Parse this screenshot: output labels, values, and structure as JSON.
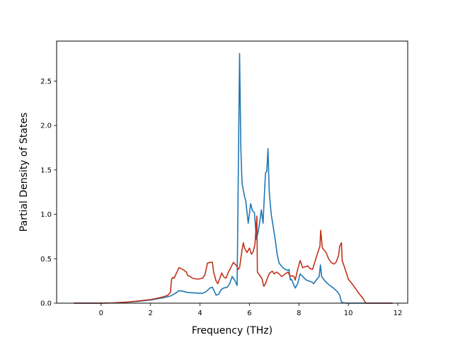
{
  "chart_data": {
    "type": "line",
    "xlabel": "Frequency (THz)",
    "ylabel": "Partial Density of States",
    "xlim": [
      -1.8,
      12.4
    ],
    "ylim": [
      0.0,
      2.95
    ],
    "xticks": [
      0,
      2,
      4,
      6,
      8,
      10,
      12
    ],
    "xtick_labels": [
      "0",
      "2",
      "4",
      "6",
      "8",
      "10",
      "12"
    ],
    "yticks": [
      0.0,
      0.5,
      1.0,
      1.5,
      2.0,
      2.5
    ],
    "ytick_labels": [
      "0.0",
      "0.5",
      "1.0",
      "1.5",
      "2.0",
      "2.5"
    ],
    "grid": false,
    "series": [
      {
        "color": "#1f77b4",
        "points": [
          [
            -1.1,
            0.0
          ],
          [
            0.0,
            0.0
          ],
          [
            0.5,
            0.003
          ],
          [
            1.0,
            0.01
          ],
          [
            1.5,
            0.02
          ],
          [
            2.0,
            0.035
          ],
          [
            2.5,
            0.06
          ],
          [
            2.8,
            0.08
          ],
          [
            3.0,
            0.11
          ],
          [
            3.15,
            0.14
          ],
          [
            3.3,
            0.135
          ],
          [
            3.5,
            0.12
          ],
          [
            3.8,
            0.115
          ],
          [
            4.1,
            0.11
          ],
          [
            4.25,
            0.13
          ],
          [
            4.4,
            0.17
          ],
          [
            4.5,
            0.18
          ],
          [
            4.55,
            0.15
          ],
          [
            4.65,
            0.09
          ],
          [
            4.75,
            0.1
          ],
          [
            4.85,
            0.15
          ],
          [
            4.95,
            0.17
          ],
          [
            5.1,
            0.18
          ],
          [
            5.2,
            0.22
          ],
          [
            5.3,
            0.3
          ],
          [
            5.4,
            0.26
          ],
          [
            5.5,
            0.2
          ],
          [
            5.6,
            2.81
          ],
          [
            5.65,
            1.75
          ],
          [
            5.7,
            1.35
          ],
          [
            5.8,
            1.2
          ],
          [
            5.85,
            1.15
          ],
          [
            5.95,
            0.9
          ],
          [
            6.05,
            1.12
          ],
          [
            6.12,
            1.04
          ],
          [
            6.2,
            1.02
          ],
          [
            6.28,
            0.72
          ],
          [
            6.35,
            0.8
          ],
          [
            6.42,
            0.92
          ],
          [
            6.48,
            1.05
          ],
          [
            6.55,
            0.9
          ],
          [
            6.6,
            1.2
          ],
          [
            6.65,
            1.47
          ],
          [
            6.7,
            1.48
          ],
          [
            6.75,
            1.74
          ],
          [
            6.8,
            1.25
          ],
          [
            6.88,
            1.0
          ],
          [
            6.95,
            0.88
          ],
          [
            7.05,
            0.7
          ],
          [
            7.12,
            0.55
          ],
          [
            7.2,
            0.45
          ],
          [
            7.35,
            0.4
          ],
          [
            7.45,
            0.38
          ],
          [
            7.55,
            0.37
          ],
          [
            7.6,
            0.38
          ],
          [
            7.65,
            0.26
          ],
          [
            7.7,
            0.27
          ],
          [
            7.8,
            0.2
          ],
          [
            7.85,
            0.17
          ],
          [
            7.95,
            0.22
          ],
          [
            8.05,
            0.33
          ],
          [
            8.15,
            0.3
          ],
          [
            8.3,
            0.26
          ],
          [
            8.5,
            0.24
          ],
          [
            8.6,
            0.22
          ],
          [
            8.7,
            0.26
          ],
          [
            8.82,
            0.3
          ],
          [
            8.87,
            0.43
          ],
          [
            8.92,
            0.3
          ],
          [
            9.05,
            0.25
          ],
          [
            9.2,
            0.21
          ],
          [
            9.4,
            0.17
          ],
          [
            9.55,
            0.13
          ],
          [
            9.65,
            0.09
          ],
          [
            9.7,
            0.03
          ],
          [
            9.75,
            0.005
          ],
          [
            10.0,
            0.0
          ],
          [
            11.75,
            0.0
          ]
        ]
      },
      {
        "color": "#c0321c",
        "points": [
          [
            -1.1,
            0.0
          ],
          [
            0.0,
            0.0
          ],
          [
            0.5,
            0.003
          ],
          [
            1.0,
            0.012
          ],
          [
            1.5,
            0.025
          ],
          [
            2.0,
            0.04
          ],
          [
            2.5,
            0.07
          ],
          [
            2.7,
            0.09
          ],
          [
            2.8,
            0.12
          ],
          [
            2.85,
            0.27
          ],
          [
            2.9,
            0.29
          ],
          [
            2.95,
            0.28
          ],
          [
            3.05,
            0.34
          ],
          [
            3.15,
            0.4
          ],
          [
            3.3,
            0.38
          ],
          [
            3.45,
            0.35
          ],
          [
            3.5,
            0.31
          ],
          [
            3.6,
            0.3
          ],
          [
            3.7,
            0.28
          ],
          [
            3.9,
            0.27
          ],
          [
            4.1,
            0.28
          ],
          [
            4.2,
            0.32
          ],
          [
            4.3,
            0.45
          ],
          [
            4.4,
            0.46
          ],
          [
            4.5,
            0.46
          ],
          [
            4.55,
            0.35
          ],
          [
            4.65,
            0.25
          ],
          [
            4.72,
            0.22
          ],
          [
            4.8,
            0.28
          ],
          [
            4.88,
            0.34
          ],
          [
            4.95,
            0.3
          ],
          [
            5.05,
            0.28
          ],
          [
            5.15,
            0.35
          ],
          [
            5.28,
            0.42
          ],
          [
            5.35,
            0.46
          ],
          [
            5.45,
            0.43
          ],
          [
            5.5,
            0.41
          ],
          [
            5.55,
            0.38
          ],
          [
            5.6,
            0.4
          ],
          [
            5.7,
            0.6
          ],
          [
            5.75,
            0.68
          ],
          [
            5.8,
            0.62
          ],
          [
            5.9,
            0.57
          ],
          [
            6.0,
            0.62
          ],
          [
            6.08,
            0.55
          ],
          [
            6.15,
            0.58
          ],
          [
            6.22,
            0.66
          ],
          [
            6.3,
            0.98
          ],
          [
            6.32,
            0.35
          ],
          [
            6.4,
            0.32
          ],
          [
            6.5,
            0.28
          ],
          [
            6.58,
            0.19
          ],
          [
            6.65,
            0.22
          ],
          [
            6.75,
            0.3
          ],
          [
            6.82,
            0.34
          ],
          [
            6.92,
            0.36
          ],
          [
            7.0,
            0.33
          ],
          [
            7.1,
            0.35
          ],
          [
            7.2,
            0.33
          ],
          [
            7.3,
            0.3
          ],
          [
            7.45,
            0.33
          ],
          [
            7.55,
            0.35
          ],
          [
            7.6,
            0.33
          ],
          [
            7.65,
            0.3
          ],
          [
            7.7,
            0.31
          ],
          [
            7.8,
            0.3
          ],
          [
            7.85,
            0.26
          ],
          [
            7.95,
            0.38
          ],
          [
            8.05,
            0.48
          ],
          [
            8.15,
            0.4
          ],
          [
            8.25,
            0.41
          ],
          [
            8.35,
            0.42
          ],
          [
            8.45,
            0.39
          ],
          [
            8.55,
            0.38
          ],
          [
            8.62,
            0.44
          ],
          [
            8.75,
            0.56
          ],
          [
            8.85,
            0.64
          ],
          [
            8.88,
            0.82
          ],
          [
            8.95,
            0.62
          ],
          [
            9.1,
            0.57
          ],
          [
            9.2,
            0.5
          ],
          [
            9.3,
            0.46
          ],
          [
            9.42,
            0.44
          ],
          [
            9.5,
            0.46
          ],
          [
            9.6,
            0.53
          ],
          [
            9.65,
            0.64
          ],
          [
            9.72,
            0.68
          ],
          [
            9.75,
            0.48
          ],
          [
            9.85,
            0.4
          ],
          [
            10.0,
            0.27
          ],
          [
            10.2,
            0.2
          ],
          [
            10.4,
            0.12
          ],
          [
            10.6,
            0.05
          ],
          [
            10.7,
            0.0
          ],
          [
            11.8,
            0.0
          ]
        ]
      }
    ]
  }
}
